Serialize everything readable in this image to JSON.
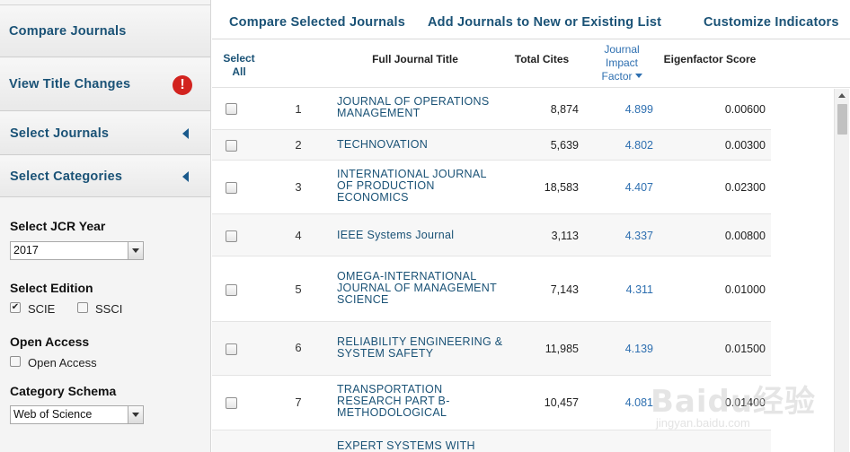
{
  "sidebar": {
    "compare_journals": "Compare Journals",
    "view_title_changes": "View Title Changes",
    "alert_glyph": "!",
    "select_journals": "Select Journals",
    "select_categories": "Select Categories",
    "jcr_year": {
      "label": "Select JCR Year",
      "value": "2017"
    },
    "edition": {
      "label": "Select Edition",
      "options": [
        {
          "label": "SCIE",
          "checked": true
        },
        {
          "label": "SSCI",
          "checked": false
        }
      ]
    },
    "open_access": {
      "label": "Open Access",
      "option": {
        "label": "Open Access",
        "checked": false
      }
    },
    "category_schema": {
      "label": "Category Schema",
      "value": "Web of Science"
    }
  },
  "toolbar": {
    "compare_selected": "Compare Selected Journals",
    "add_to_list": "Add Journals to New or Existing List",
    "customize": "Customize Indicators"
  },
  "table": {
    "headers": {
      "select_all_1": "Select",
      "select_all_2": "All",
      "title": "Full Journal Title",
      "cites": "Total Cites",
      "jif_1": "Journal",
      "jif_2": "Impact",
      "jif_3": "Factor",
      "eigen": "Eigenfactor Score"
    },
    "rows": [
      {
        "rank": "1",
        "title": "JOURNAL OF OPERATIONS MANAGEMENT",
        "cites": "8,874",
        "jif": "4.899",
        "eigen": "0.00600"
      },
      {
        "rank": "2",
        "title": "TECHNOVATION",
        "cites": "5,639",
        "jif": "4.802",
        "eigen": "0.00300"
      },
      {
        "rank": "3",
        "title": "INTERNATIONAL JOURNAL OF PRODUCTION ECONOMICS",
        "cites": "18,583",
        "jif": "4.407",
        "eigen": "0.02300"
      },
      {
        "rank": "4",
        "title": "IEEE Systems Journal",
        "cites": "3,113",
        "jif": "4.337",
        "eigen": "0.00800"
      },
      {
        "rank": "5",
        "title": "OMEGA-INTERNATIONAL JOURNAL OF MANAGEMENT SCIENCE",
        "cites": "7,143",
        "jif": "4.311",
        "eigen": "0.01000"
      },
      {
        "rank": "6",
        "title": "RELIABILITY ENGINEERING & SYSTEM SAFETY",
        "cites": "11,985",
        "jif": "4.139",
        "eigen": "0.01500"
      },
      {
        "rank": "7",
        "title": "TRANSPORTATION RESEARCH PART B-METHODOLOGICAL",
        "cites": "10,457",
        "jif": "4.081",
        "eigen": "0.01400"
      },
      {
        "rank": "",
        "title": "EXPERT SYSTEMS WITH",
        "cites": "",
        "jif": "",
        "eigen": ""
      }
    ]
  },
  "watermark": {
    "main": "Baidu经验",
    "sub": "jingyan.baidu.com"
  }
}
